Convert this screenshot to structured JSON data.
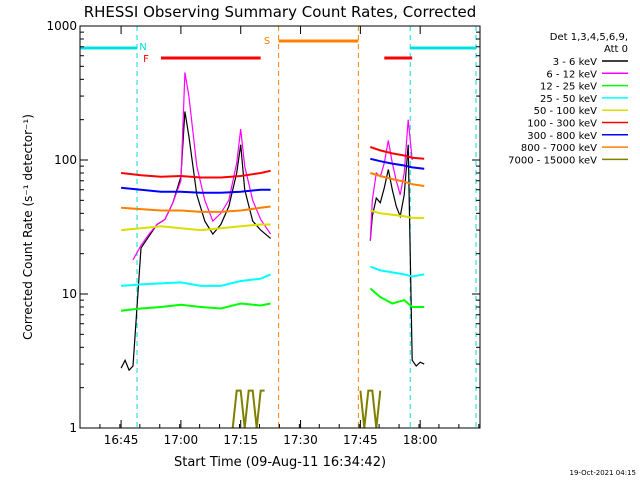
{
  "chart_data": {
    "type": "line",
    "title": "RHESSI Observing Summary Count Rates, Corrected",
    "xlabel": "Start Time (09-Aug-11 16:34:42)",
    "ylabel": "Corrected Count Rate (s⁻¹ detector⁻¹)",
    "y_scale": "log",
    "ylim": [
      1,
      1000
    ],
    "xlim": [
      "16:34:42",
      "18:15:00"
    ],
    "x_ticks": [
      "16:45",
      "17:00",
      "17:15",
      "17:30",
      "17:45",
      "18:00"
    ],
    "y_ticks": [
      "1",
      "10",
      "100",
      "1000"
    ],
    "footer_timestamp": "19-Oct-2021 04:15",
    "legend": {
      "header": [
        "Det 1,3,4,5,6,9,",
        "Att 0"
      ],
      "placement": "right"
    },
    "flags": [
      {
        "label": "N",
        "color": "#00e0e0",
        "name": "night"
      },
      {
        "label": "F",
        "color": "#ff0000",
        "name": "flare"
      },
      {
        "label": "S",
        "color": "#ff8000",
        "name": "saa"
      }
    ],
    "flag_intervals": {
      "night": [
        [
          "16:34:42",
          "16:49:00"
        ],
        [
          "17:57:30",
          "18:14:00"
        ]
      ],
      "flare": [
        [
          "16:55:00",
          "17:20:00"
        ],
        [
          "17:51:00",
          "17:58:00"
        ]
      ],
      "saa": [
        [
          "17:24:30",
          "17:44:30"
        ]
      ]
    },
    "series": [
      {
        "name": "3 - 6 keV",
        "color": "#000000",
        "x": [
          "16:45",
          "16:46",
          "16:47",
          "16:48",
          "16:50",
          "16:52",
          "16:54",
          "16:56",
          "16:58",
          "17:00",
          "17:01",
          "17:02",
          "17:04",
          "17:06",
          "17:08",
          "17:10",
          "17:12",
          "17:14",
          "17:15",
          "17:16",
          "17:18",
          "17:20",
          "17:22.5",
          null,
          "17:47.5",
          "17:48",
          "17:49",
          "17:50",
          "17:51",
          "17:52",
          "17:53",
          "17:54",
          "17:55",
          "17:56",
          "17:57",
          "17:58",
          "17:59",
          "18:00",
          "18:01"
        ],
        "y": [
          2.8,
          3.2,
          2.7,
          2.9,
          22,
          27,
          33,
          36,
          48,
          75,
          230,
          150,
          55,
          35,
          28,
          33,
          45,
          80,
          130,
          60,
          35,
          30,
          26,
          null,
          25,
          38,
          52,
          48,
          62,
          85,
          60,
          45,
          38,
          55,
          130,
          3.2,
          2.9,
          3.1,
          3.0
        ]
      },
      {
        "name": "6 - 12 keV",
        "color": "#ff00ff",
        "x": [
          "16:48",
          "16:50",
          "16:52",
          "16:54",
          "16:56",
          "16:58",
          "17:00",
          "17:01",
          "17:02",
          "17:04",
          "17:06",
          "17:08",
          "17:10",
          "17:12",
          "17:14",
          "17:15",
          "17:16",
          "17:18",
          "17:20",
          "17:22.5",
          null,
          "17:47.5",
          "17:48",
          "17:49",
          "17:50",
          "17:51",
          "17:52",
          "17:53",
          "17:54",
          "17:55",
          "17:56",
          "17:57",
          "17:58"
        ],
        "y": [
          18,
          23,
          28,
          33,
          36,
          48,
          70,
          450,
          300,
          90,
          50,
          35,
          40,
          50,
          95,
          170,
          90,
          50,
          36,
          28,
          null,
          25,
          50,
          80,
          75,
          95,
          140,
          95,
          70,
          55,
          80,
          200,
          100
        ]
      },
      {
        "name": "12 - 25 keV",
        "color": "#00ff00",
        "x": [
          "16:45",
          "16:50",
          "16:55",
          "17:00",
          "17:05",
          "17:10",
          "17:15",
          "17:20",
          "17:22.5",
          null,
          "17:47.5",
          "17:50",
          "17:53",
          "17:56",
          "17:58",
          "18:01"
        ],
        "y": [
          7.5,
          7.8,
          8.0,
          8.3,
          8.0,
          7.8,
          8.5,
          8.2,
          8.5,
          null,
          11,
          9.5,
          8.5,
          9.0,
          8.0,
          8.0
        ]
      },
      {
        "name": "25 - 50 keV",
        "color": "#00ffff",
        "x": [
          "16:45",
          "16:50",
          "16:55",
          "17:00",
          "17:05",
          "17:10",
          "17:15",
          "17:20",
          "17:22.5",
          null,
          "17:47.5",
          "17:50",
          "17:53",
          "17:56",
          "17:58",
          "18:01"
        ],
        "y": [
          11.5,
          11.8,
          12,
          12.2,
          11.5,
          11.5,
          12.5,
          13,
          14,
          null,
          16,
          15,
          14.5,
          14,
          13.5,
          14
        ]
      },
      {
        "name": "50 - 100 keV",
        "color": "#dddd00",
        "x": [
          "16:45",
          "16:50",
          "16:55",
          "17:00",
          "17:05",
          "17:10",
          "17:15",
          "17:20",
          "17:22.5",
          null,
          "17:47.5",
          "17:50",
          "17:53",
          "17:56",
          "17:58",
          "18:01"
        ],
        "y": [
          30,
          31,
          32,
          31,
          30,
          31,
          32,
          33,
          33,
          null,
          42,
          40,
          39,
          38,
          37,
          37
        ]
      },
      {
        "name": "100 - 300 keV",
        "color": "#ff0000",
        "x": [
          "16:45",
          "16:50",
          "16:55",
          "17:00",
          "17:05",
          "17:10",
          "17:15",
          "17:20",
          "17:22.5",
          null,
          "17:47.5",
          "17:50",
          "17:53",
          "17:56",
          "17:58",
          "18:01"
        ],
        "y": [
          80,
          77,
          75,
          76,
          74,
          74,
          76,
          80,
          83,
          null,
          125,
          118,
          112,
          108,
          104,
          102
        ]
      },
      {
        "name": "300 - 800 keV",
        "color": "#0000ff",
        "x": [
          "16:45",
          "16:50",
          "16:55",
          "17:00",
          "17:05",
          "17:10",
          "17:15",
          "17:20",
          "17:22.5",
          null,
          "17:47.5",
          "17:50",
          "17:53",
          "17:56",
          "17:58",
          "18:01"
        ],
        "y": [
          62,
          60,
          58,
          58,
          57,
          57,
          58,
          60,
          60,
          null,
          102,
          98,
          94,
          91,
          88,
          86
        ]
      },
      {
        "name": "800 - 7000 keV",
        "color": "#ff8000",
        "x": [
          "16:45",
          "16:50",
          "16:55",
          "17:00",
          "17:05",
          "17:10",
          "17:15",
          "17:20",
          "17:22.5",
          null,
          "17:47.5",
          "17:50",
          "17:53",
          "17:56",
          "17:58",
          "18:01"
        ],
        "y": [
          44,
          43,
          42,
          42,
          41,
          41,
          42,
          44,
          45,
          null,
          80,
          76,
          72,
          69,
          66,
          64
        ]
      },
      {
        "name": "7000 - 15000 keV",
        "color": "#808000",
        "x": [
          "17:13",
          "17:14",
          "17:15",
          "17:16",
          "17:17",
          "17:18",
          "17:19",
          "17:20",
          "17:21",
          null,
          "17:45",
          "17:46",
          "17:47",
          "17:48",
          "17:49",
          "17:50"
        ],
        "y": [
          1,
          1.9,
          1.9,
          1,
          1.9,
          1.9,
          1,
          1.9,
          1.9,
          null,
          1.9,
          1,
          1.9,
          1.9,
          1,
          1.9
        ]
      }
    ]
  }
}
